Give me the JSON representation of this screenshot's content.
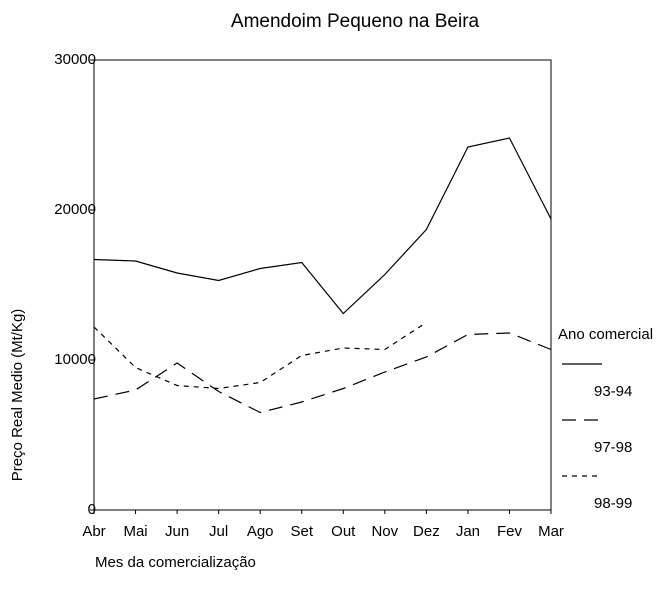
{
  "chart_data": {
    "type": "line",
    "title": "Amendoim Pequeno na Beira",
    "x_label": "Mes da comercialização",
    "y_label": "Preço Real Medio (Mt/Kg)",
    "categories": [
      "Abr",
      "Mai",
      "Jun",
      "Jul",
      "Ago",
      "Set",
      "Out",
      "Nov",
      "Dez",
      "Jan",
      "Fev",
      "Mar"
    ],
    "legend_title": "Ano comercial",
    "legend": "right",
    "series": [
      {
        "name": "93-94",
        "color": "#000000",
        "dash": "solid",
        "values": [
          16700,
          16600,
          15800,
          15300,
          16100,
          16500,
          13100,
          15700,
          18700,
          24200,
          24800,
          19400
        ]
      },
      {
        "name": "97-98",
        "color": "#000000",
        "dash": "long",
        "values": [
          7400,
          8000,
          9800,
          7900,
          6500,
          7200,
          8100,
          9200,
          10200,
          11700,
          11800,
          10700
        ]
      },
      {
        "name": "98-99",
        "color": "#000000",
        "dash": "short",
        "values": [
          12200,
          9500,
          8300,
          8100,
          8500,
          10300,
          10800,
          10700,
          12500,
          null,
          null,
          null
        ]
      }
    ],
    "ylim": [
      0,
      30000
    ],
    "yticks": [
      0,
      10000,
      20000,
      30000
    ]
  }
}
